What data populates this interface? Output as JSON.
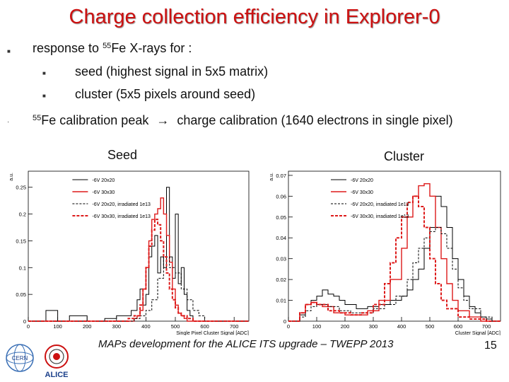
{
  "title": "Charge collection efficiency in Explorer-0",
  "bullets": {
    "b1": {
      "pre": "response to ",
      "sup": "55",
      "post": "Fe X-rays for :"
    },
    "b1a": "seed (highest signal in 5x5 matrix)",
    "b1b": "cluster (5x5 pixels around seed)",
    "b2": {
      "sup": "55",
      "pre": "Fe calibration peak",
      "arrow": "→",
      "post": "charge calibration (1640 electrons in single pixel)"
    }
  },
  "labels": {
    "seed": "Seed",
    "cluster": "Cluster"
  },
  "footer": "MAPs development for the ALICE ITS upgrade – TWEPP 2013",
  "page_number": "15",
  "logos": {
    "cern": "CERN",
    "alice": "ALICE"
  },
  "colors": {
    "title": "#cc1111",
    "red": "#dd1a1a",
    "black": "#000000"
  },
  "chart_data": [
    {
      "type": "line",
      "name": "seed",
      "ylabel": "a.u.",
      "xlabel": "Single Pixel Cluster Signal [ADC]",
      "xlim": [
        0,
        750
      ],
      "ylim": [
        0,
        0.28
      ],
      "xticks": [
        0,
        100,
        200,
        300,
        400,
        500,
        600,
        700
      ],
      "yticks": [
        0,
        0.05,
        0.1,
        0.15,
        0.2,
        0.25
      ],
      "ytick_labels": [
        "0",
        "0.05",
        "0.1",
        "0.15",
        "0.2",
        "0.25"
      ],
      "legend": [
        "-6V 20x20",
        "-6V 30x30",
        "-6V 20x20, irradiated 1e13",
        "-6V 30x30, irradiated 1e13"
      ],
      "series": [
        {
          "name": "-6V 20x20",
          "color": "#000000",
          "dash": "",
          "width": 1,
          "x": [
            0,
            50,
            60,
            100,
            140,
            180,
            200,
            260,
            300,
            330,
            350,
            370,
            380,
            390,
            400,
            410,
            420,
            430,
            440,
            450,
            460,
            470,
            480,
            490,
            500,
            510,
            520,
            530,
            540,
            550,
            560,
            600,
            650,
            700,
            750
          ],
          "y": [
            0,
            0,
            0.02,
            0,
            0.01,
            0.01,
            0,
            0.005,
            0.01,
            0.01,
            0.02,
            0.04,
            0.06,
            0.03,
            0.05,
            0.12,
            0.14,
            0.16,
            0.09,
            0.12,
            0.1,
            0.25,
            0.12,
            0.08,
            0.2,
            0.07,
            0.1,
            0.05,
            0.02,
            0.01,
            0,
            0,
            0,
            0,
            0
          ]
        },
        {
          "name": "-6V 30x30",
          "color": "#dd1a1a",
          "dash": "",
          "width": 1.4,
          "x": [
            0,
            300,
            340,
            360,
            370,
            380,
            390,
            400,
            410,
            420,
            430,
            440,
            450,
            460,
            470,
            480,
            490,
            500,
            510,
            520,
            530,
            540,
            550,
            600,
            750
          ],
          "y": [
            0,
            0,
            0,
            0.005,
            0.01,
            0.02,
            0.06,
            0.1,
            0.15,
            0.19,
            0.2,
            0.21,
            0.23,
            0.2,
            0.16,
            0.11,
            0.06,
            0.03,
            0.015,
            0.01,
            0.005,
            0,
            0,
            0,
            0
          ]
        },
        {
          "name": "-6V 20x20, irradiated 1e13",
          "color": "#000000",
          "dash": "3,2",
          "width": 1,
          "x": [
            0,
            300,
            340,
            360,
            380,
            400,
            420,
            440,
            460,
            480,
            500,
            520,
            540,
            560,
            580,
            600,
            750
          ],
          "y": [
            0,
            0,
            0,
            0.005,
            0.01,
            0.02,
            0.04,
            0.08,
            0.12,
            0.1,
            0.09,
            0.06,
            0.04,
            0.02,
            0.01,
            0,
            0
          ]
        },
        {
          "name": "-6V 30x30, irradiated 1e13",
          "color": "#dd1a1a",
          "dash": "4,2",
          "width": 2,
          "x": [
            0,
            300,
            340,
            360,
            380,
            390,
            400,
            410,
            420,
            430,
            440,
            450,
            460,
            470,
            480,
            490,
            500,
            510,
            520,
            540,
            560,
            750
          ],
          "y": [
            0,
            0,
            0.005,
            0.01,
            0.03,
            0.06,
            0.1,
            0.14,
            0.17,
            0.19,
            0.18,
            0.15,
            0.12,
            0.09,
            0.06,
            0.04,
            0.025,
            0.015,
            0.01,
            0.005,
            0,
            0
          ]
        }
      ]
    },
    {
      "type": "line",
      "name": "cluster",
      "ylabel": "a.u.",
      "xlabel": "Cluster Signal [ADC]",
      "xlim": [
        0,
        750
      ],
      "ylim": [
        0,
        0.072
      ],
      "xticks": [
        0,
        100,
        200,
        300,
        400,
        500,
        600,
        700
      ],
      "yticks": [
        0,
        0.01,
        0.02,
        0.03,
        0.04,
        0.05,
        0.06,
        0.07
      ],
      "ytick_labels": [
        "0",
        "0.01",
        "0.02",
        "0.03",
        "0.04",
        "0.05",
        "0.06",
        "0.07"
      ],
      "legend": [
        "-6V 20x20",
        "-6V 30x30",
        "-6V 20x20, irradiated 1e13",
        "-6V 30x30, irradiated 1e13"
      ],
      "series": [
        {
          "name": "-6V 20x20",
          "color": "#000000",
          "dash": "",
          "width": 1,
          "x": [
            0,
            40,
            60,
            80,
            100,
            120,
            140,
            160,
            180,
            200,
            240,
            280,
            320,
            360,
            400,
            420,
            440,
            460,
            480,
            500,
            520,
            540,
            560,
            580,
            600,
            620,
            640,
            660,
            680,
            700,
            720,
            750
          ],
          "y": [
            0,
            0.003,
            0.008,
            0.01,
            0.012,
            0.015,
            0.013,
            0.012,
            0.01,
            0.008,
            0.006,
            0.007,
            0.008,
            0.01,
            0.012,
            0.015,
            0.02,
            0.025,
            0.035,
            0.045,
            0.06,
            0.055,
            0.045,
            0.03,
            0.02,
            0.012,
            0.007,
            0.004,
            0.002,
            0.001,
            0,
            0
          ]
        },
        {
          "name": "-6V 30x30",
          "color": "#dd1a1a",
          "dash": "",
          "width": 1.4,
          "x": [
            0,
            40,
            60,
            80,
            100,
            120,
            160,
            200,
            240,
            280,
            320,
            360,
            400,
            420,
            440,
            460,
            480,
            500,
            520,
            540,
            560,
            580,
            600,
            640,
            680,
            750
          ],
          "y": [
            0,
            0.004,
            0.008,
            0.009,
            0.008,
            0.007,
            0.004,
            0.003,
            0.003,
            0.005,
            0.01,
            0.02,
            0.035,
            0.05,
            0.06,
            0.065,
            0.066,
            0.06,
            0.045,
            0.03,
            0.018,
            0.01,
            0.005,
            0.002,
            0,
            0
          ]
        },
        {
          "name": "-6V 20x20, irradiated 1e13",
          "color": "#000000",
          "dash": "3,2",
          "width": 1,
          "x": [
            0,
            40,
            60,
            80,
            100,
            140,
            180,
            220,
            260,
            300,
            340,
            380,
            420,
            440,
            460,
            480,
            500,
            520,
            540,
            560,
            580,
            600,
            620,
            640,
            680,
            720,
            750
          ],
          "y": [
            0,
            0.002,
            0.005,
            0.007,
            0.008,
            0.007,
            0.005,
            0.004,
            0.004,
            0.006,
            0.008,
            0.012,
            0.02,
            0.028,
            0.035,
            0.04,
            0.043,
            0.045,
            0.042,
            0.035,
            0.025,
            0.016,
            0.01,
            0.006,
            0.002,
            0,
            0
          ]
        },
        {
          "name": "-6V 30x30, irradiated 1e13",
          "color": "#dd1a1a",
          "dash": "4,2",
          "width": 2,
          "x": [
            0,
            40,
            60,
            80,
            100,
            140,
            180,
            220,
            260,
            300,
            340,
            360,
            380,
            400,
            420,
            440,
            460,
            480,
            500,
            520,
            540,
            560,
            600,
            640,
            700,
            750
          ],
          "y": [
            0,
            0.004,
            0.008,
            0.009,
            0.008,
            0.005,
            0.004,
            0.003,
            0.004,
            0.008,
            0.018,
            0.028,
            0.04,
            0.05,
            0.057,
            0.06,
            0.055,
            0.045,
            0.03,
            0.018,
            0.01,
            0.006,
            0.002,
            0.001,
            0,
            0
          ]
        }
      ]
    }
  ]
}
